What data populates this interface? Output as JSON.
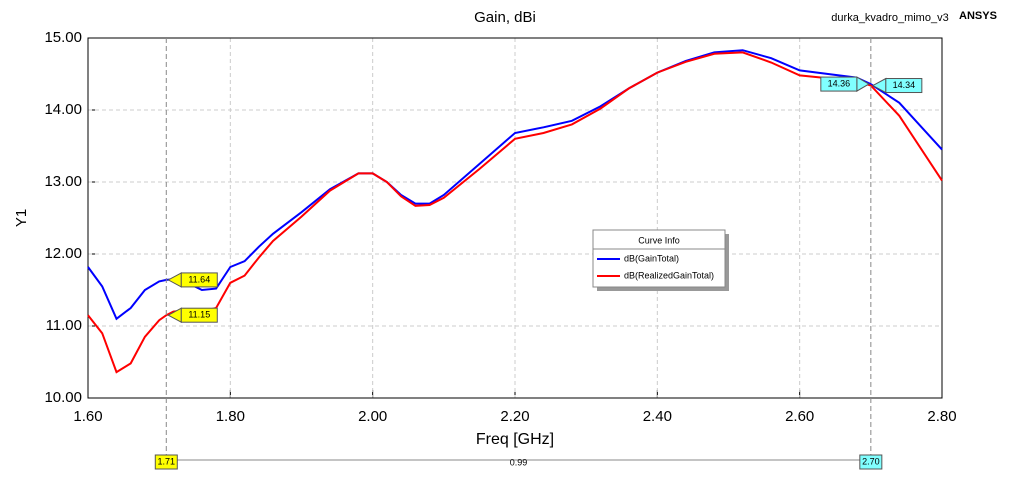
{
  "chart_data": {
    "type": "line",
    "title": "Gain, dBi",
    "design": "durka_kvadro_mimo_v3",
    "brand": "ANSYS",
    "xlabel": "Freq [GHz]",
    "ylabel": "Y1",
    "x": [
      1.6,
      1.62,
      1.64,
      1.66,
      1.68,
      1.7,
      1.71,
      1.72,
      1.74,
      1.76,
      1.78,
      1.8,
      1.82,
      1.84,
      1.86,
      1.9,
      1.94,
      1.98,
      2.0,
      2.02,
      2.04,
      2.06,
      2.08,
      2.1,
      2.15,
      2.2,
      2.24,
      2.28,
      2.32,
      2.36,
      2.4,
      2.44,
      2.48,
      2.52,
      2.56,
      2.6,
      2.64,
      2.68,
      2.7,
      2.74,
      2.8
    ],
    "series": [
      {
        "name": "dB(GainTotal)",
        "color": "#0000ff",
        "values": [
          11.82,
          11.55,
          11.1,
          11.25,
          11.5,
          11.62,
          11.64,
          11.65,
          11.6,
          11.5,
          11.52,
          11.82,
          11.9,
          12.1,
          12.28,
          12.58,
          12.9,
          13.12,
          13.12,
          13.0,
          12.82,
          12.7,
          12.7,
          12.82,
          13.25,
          13.68,
          13.76,
          13.85,
          14.05,
          14.3,
          14.52,
          14.68,
          14.8,
          14.83,
          14.72,
          14.55,
          14.5,
          14.45,
          14.36,
          14.1,
          13.45
        ]
      },
      {
        "name": "dB(RealizedGainTotal)",
        "color": "#ff0000",
        "values": [
          11.15,
          10.9,
          10.36,
          10.48,
          10.85,
          11.08,
          11.15,
          11.2,
          11.22,
          11.2,
          11.25,
          11.6,
          11.7,
          11.95,
          12.18,
          12.52,
          12.88,
          13.12,
          13.12,
          13.0,
          12.8,
          12.67,
          12.68,
          12.78,
          13.18,
          13.6,
          13.68,
          13.8,
          14.02,
          14.3,
          14.52,
          14.67,
          14.78,
          14.8,
          14.66,
          14.48,
          14.44,
          14.4,
          14.34,
          13.92,
          13.02
        ]
      }
    ],
    "xlim": [
      1.6,
      2.8
    ],
    "ylim": [
      10,
      15
    ],
    "xticks": [
      {
        "value": 1.6,
        "label": "1.60"
      },
      {
        "value": 1.8,
        "label": "1.80"
      },
      {
        "value": 2.0,
        "label": "2.00"
      },
      {
        "value": 2.2,
        "label": "2.20"
      },
      {
        "value": 2.4,
        "label": "2.40"
      },
      {
        "value": 2.6,
        "label": "2.60"
      },
      {
        "value": 2.8,
        "label": "2.80"
      }
    ],
    "yticks": [
      {
        "value": 10,
        "label": "10.00"
      },
      {
        "value": 11,
        "label": "11.00"
      },
      {
        "value": 12,
        "label": "12.00"
      },
      {
        "value": 13,
        "label": "13.00"
      },
      {
        "value": 14,
        "label": "14.00"
      },
      {
        "value": 15,
        "label": "15.00"
      }
    ],
    "grid": true,
    "legend_title": "Curve Info",
    "markers": [
      {
        "x": 1.71,
        "color": "#ffff00",
        "values": [
          11.64,
          11.15
        ]
      },
      {
        "x": {
          "value": 2.7,
          "label": "2.70"
        },
        "color": "#80ffff",
        "values": [
          14.36,
          14.34
        ]
      }
    ],
    "marker_delta": 0.99
  }
}
